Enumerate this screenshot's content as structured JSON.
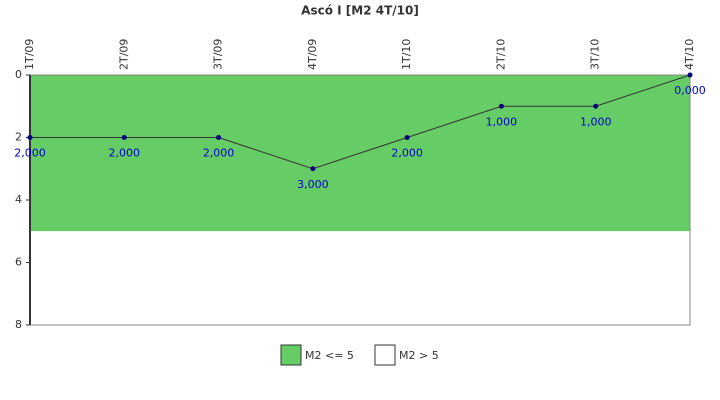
{
  "chart_data": {
    "type": "line",
    "title": "Ascó I [M2 4T/10]",
    "categories": [
      "1T/09",
      "2T/09",
      "3T/09",
      "4T/09",
      "1T/10",
      "2T/10",
      "3T/10",
      "4T/10"
    ],
    "series": [
      {
        "color": "#000080",
        "line_color": "#333333",
        "values": [
          2,
          2,
          2,
          3,
          2,
          1,
          1,
          0
        ],
        "value_labels": [
          "2,000",
          "2,000",
          "2,000",
          "3,000",
          "2,000",
          "1,000",
          "1,000",
          "0,000"
        ],
        "label_color": "#0000cc"
      }
    ],
    "bands": [
      {
        "name": "M2 <= 5",
        "color": "#66cc66",
        "from": 0,
        "to": 5
      },
      {
        "name": "M2 > 5",
        "color": "#ffffff",
        "from": 5,
        "to": 8
      }
    ],
    "ylim": [
      0,
      8
    ],
    "yticks": [
      0,
      2,
      4,
      6,
      8
    ],
    "y_inverted": true,
    "grid": false
  }
}
